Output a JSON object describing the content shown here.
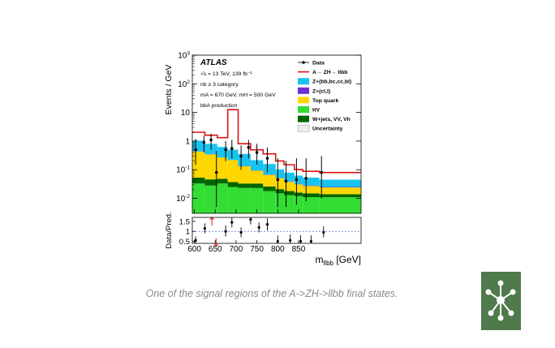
{
  "caption": "One of the signal regions of the A->ZH->llbb final states.",
  "logo_icon": "node-network-icon",
  "chart_data": {
    "type": "histogram",
    "ylabel_top": "Events / GeV",
    "ylabel_bottom": "Data/Pred.",
    "xlabel": "m",
    "xlabel_sub": "llbb",
    "xlabel_unit": " [GeV]",
    "experiment": "ATLAS",
    "info_lines": [
      {
        "text": "√s = 13 TeV, 139 fb⁻¹"
      },
      {
        "text": "nb ≥ 3 category"
      },
      {
        "text": "mA = 670 GeV, mH = 500 GeV"
      },
      {
        "text": "bbA production"
      }
    ],
    "x_range": [
      595,
      1000
    ],
    "x_ticks": [
      600,
      650,
      700,
      750,
      800,
      850
    ],
    "y_range_log": [
      0.003,
      1000
    ],
    "y_ticks": [
      {
        "v": 1000,
        "base": "10",
        "exp": "3"
      },
      {
        "v": 100,
        "base": "10",
        "exp": "2"
      },
      {
        "v": 10,
        "base": "10",
        "exp": ""
      },
      {
        "v": 1,
        "base": "1",
        "exp": ""
      },
      {
        "v": 0.1,
        "base": "10",
        "exp": "-1"
      },
      {
        "v": 0.01,
        "base": "10",
        "exp": "-2"
      }
    ],
    "ratio_range": [
      0.4,
      1.7
    ],
    "ratio_ticks": [
      0.5,
      1,
      1.5
    ],
    "bin_edges": [
      595,
      625,
      655,
      680,
      705,
      735,
      765,
      795,
      815,
      840,
      860,
      900,
      1000
    ],
    "stack": [
      {
        "name": "ttV",
        "color": "#33dd33",
        "values": [
          0.03,
          0.025,
          0.03,
          0.022,
          0.02,
          0.02,
          0.015,
          0.012,
          0.01,
          0.009,
          0.008,
          0.008
        ]
      },
      {
        "name": "W+jets, VV, Vh",
        "color": "#006600",
        "values": [
          0.02,
          0.018,
          0.015,
          0.012,
          0.01,
          0.01,
          0.008,
          0.006,
          0.005,
          0.004,
          0.004,
          0.003
        ]
      },
      {
        "name": "Top quark",
        "color": "#ffd700",
        "values": [
          0.38,
          0.3,
          0.22,
          0.18,
          0.1,
          0.06,
          0.04,
          0.03,
          0.02,
          0.015,
          0.012,
          0.01
        ]
      },
      {
        "name": "Z+(cl,l)",
        "color": "#6e2fd9",
        "values": [
          0.005,
          0.004,
          0.004,
          0.003,
          0.003,
          0.002,
          0.002,
          0.0015,
          0.001,
          0.001,
          0.001,
          0.001
        ]
      },
      {
        "name": "Z+(bb,bc,cc,bl)",
        "color": "#19c3ee",
        "values": [
          0.6,
          0.45,
          0.35,
          0.28,
          0.22,
          0.12,
          0.09,
          0.05,
          0.04,
          0.03,
          0.025,
          0.02
        ]
      }
    ],
    "signal": {
      "name": "A→ ZH→ llbb",
      "color": "#dd1111",
      "values": [
        1.0,
        0.8,
        0.7,
        12.0,
        0.45,
        0.28,
        0.2,
        0.1,
        0.07,
        0.04,
        0.035,
        0.035
      ]
    },
    "data_points": [
      {
        "x": 603,
        "y": 0.5,
        "lo": 0.15,
        "hi": 1.2
      },
      {
        "x": 623,
        "y": 0.9,
        "lo": 0.4,
        "hi": 1.5
      },
      {
        "x": 640,
        "y": 1.1,
        "lo": 0.5,
        "hi": 1.8
      },
      {
        "x": 653,
        "y": 0.08,
        "lo": 0.005,
        "hi": 0.45
      },
      {
        "x": 675,
        "y": 0.5,
        "lo": 0.2,
        "hi": 1.0
      },
      {
        "x": 690,
        "y": 0.55,
        "lo": 0.25,
        "hi": 1.1
      },
      {
        "x": 712,
        "y": 0.3,
        "lo": 0.1,
        "hi": 0.7
      },
      {
        "x": 730,
        "y": 0.6,
        "lo": 0.25,
        "hi": 1.1
      },
      {
        "x": 750,
        "y": 0.4,
        "lo": 0.15,
        "hi": 0.8
      },
      {
        "x": 775,
        "y": 0.25,
        "lo": 0.08,
        "hi": 0.6
      },
      {
        "x": 800,
        "y": 0.045,
        "lo": 0.005,
        "hi": 0.25
      },
      {
        "x": 820,
        "y": 0.04,
        "lo": 0.005,
        "hi": 0.2
      },
      {
        "x": 845,
        "y": 0.045,
        "lo": 0.006,
        "hi": 0.25
      },
      {
        "x": 868,
        "y": 0.05,
        "lo": 0.008,
        "hi": 0.25
      },
      {
        "x": 905,
        "y": 0.08,
        "lo": 0.01,
        "hi": 0.3
      }
    ],
    "ratio_points": [
      {
        "x": 603,
        "y": 0.55,
        "lo": 0.4,
        "hi": 0.75
      },
      {
        "x": 625,
        "y": 1.15,
        "lo": 0.9,
        "hi": 1.4
      },
      {
        "x": 642,
        "y": 1.5,
        "arrow": "up"
      },
      {
        "x": 652,
        "y": 0.45,
        "arrow": "down"
      },
      {
        "x": 675,
        "y": 1.0,
        "lo": 0.75,
        "hi": 1.3
      },
      {
        "x": 690,
        "y": 1.45,
        "lo": 1.2,
        "hi": 1.7
      },
      {
        "x": 712,
        "y": 0.95,
        "lo": 0.7,
        "hi": 1.2
      },
      {
        "x": 735,
        "y": 1.6,
        "lo": 1.35,
        "hi": 1.7
      },
      {
        "x": 755,
        "y": 1.2,
        "lo": 0.95,
        "hi": 1.45
      },
      {
        "x": 775,
        "y": 1.35,
        "lo": 1.05,
        "hi": 1.65
      },
      {
        "x": 800,
        "y": 0.5,
        "lo": 0.4,
        "hi": 0.8
      },
      {
        "x": 830,
        "y": 0.55,
        "lo": 0.4,
        "hi": 0.85
      },
      {
        "x": 855,
        "y": 0.5,
        "lo": 0.4,
        "hi": 0.8
      },
      {
        "x": 880,
        "y": 0.5,
        "lo": 0.4,
        "hi": 0.8
      },
      {
        "x": 910,
        "y": 0.95,
        "lo": 0.7,
        "hi": 1.25
      }
    ],
    "legend": [
      {
        "label": "Data",
        "kind": "data",
        "color": "#000000"
      },
      {
        "label": "A→ ZH→ llbb",
        "kind": "line",
        "color": "#dd1111"
      },
      {
        "label": "Z+(bb,bc,cc,bl)",
        "kind": "box",
        "color": "#19c3ee"
      },
      {
        "label": "Z+(cl,l)",
        "kind": "box",
        "color": "#6e2fd9"
      },
      {
        "label": "Top quark",
        "kind": "box",
        "color": "#ffd700"
      },
      {
        "label": "ttV",
        "kind": "box",
        "color": "#33dd33"
      },
      {
        "label": "W+jets, VV, Vh",
        "kind": "box",
        "color": "#006600"
      },
      {
        "label": "Uncertainty",
        "kind": "box",
        "color": "#eeeeee"
      }
    ]
  }
}
